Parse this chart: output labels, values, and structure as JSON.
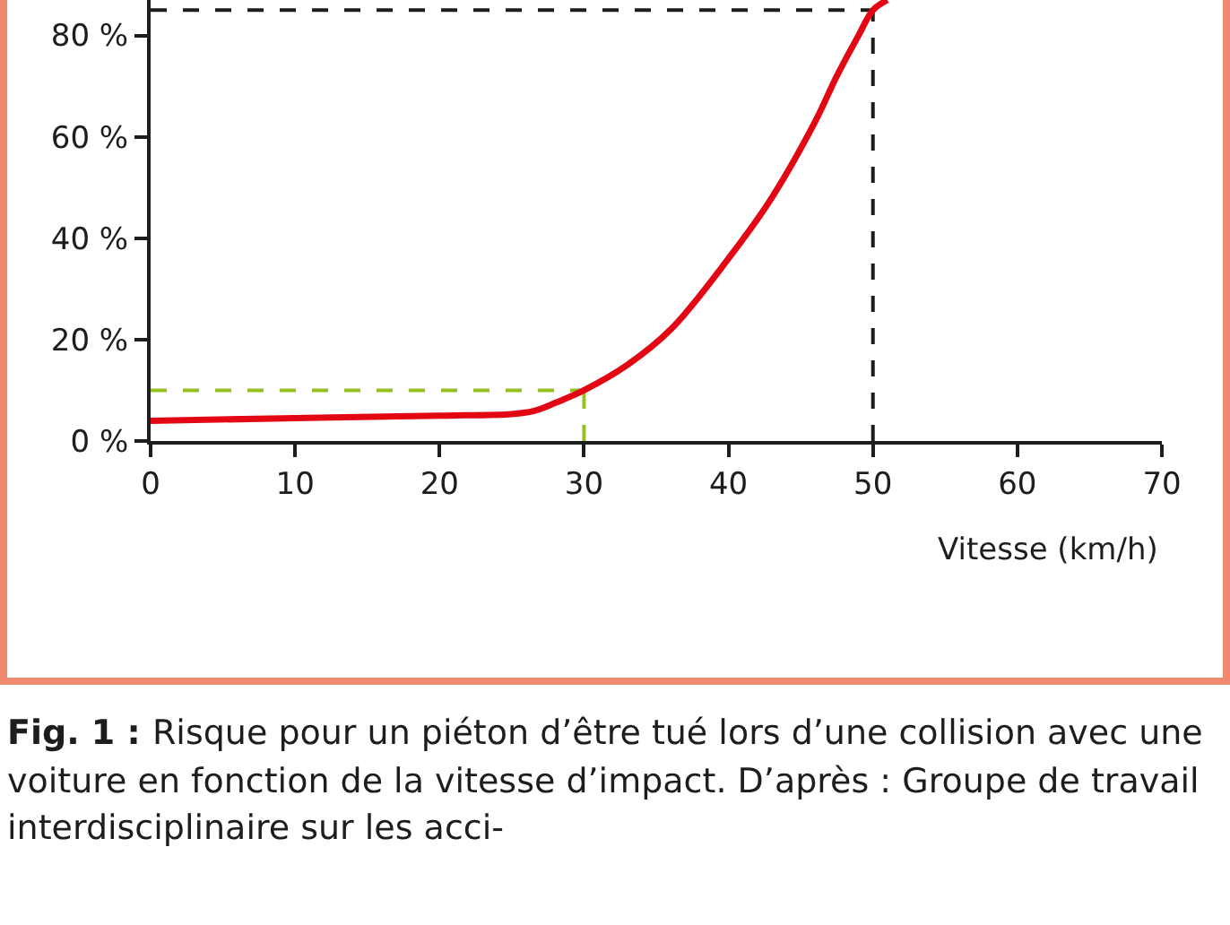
{
  "chart_data": {
    "type": "line",
    "xlabel": "Vitesse (km/h)",
    "x": [
      0,
      10,
      20,
      25,
      26.5,
      28,
      30,
      33,
      36,
      40,
      43,
      46,
      47.5,
      49,
      50,
      51
    ],
    "series": [
      {
        "color": "#e30613",
        "values": [
          4,
          4.5,
          5,
          5.3,
          5.9,
          7.5,
          10,
          15,
          22,
          36,
          48,
          63,
          72,
          80,
          85,
          87
        ]
      }
    ],
    "xlim": [
      0,
      70
    ],
    "xticks": [
      0,
      10,
      20,
      30,
      40,
      50,
      60,
      70
    ],
    "ylim": [
      0,
      87
    ],
    "yticks": [
      {
        "value": 0,
        "label": "0 %"
      },
      {
        "value": 20,
        "label": "20 %"
      },
      {
        "value": 40,
        "label": "40 %"
      },
      {
        "value": 60,
        "label": "60 %"
      },
      {
        "value": 80,
        "label": "80 %"
      }
    ],
    "ref_lines": [
      {
        "axis": "y",
        "value": 10,
        "color": "#95c11f",
        "line_style": "dashed"
      },
      {
        "axis": "x",
        "value": 30,
        "color": "#95c11f",
        "line_style": "dashed"
      },
      {
        "axis": "y",
        "value": 85,
        "color": "#1d1d1b",
        "line_style": "dashed"
      },
      {
        "axis": "x",
        "value": 50,
        "color": "#1d1d1b",
        "line_style": "dashed"
      }
    ],
    "annotations": [
      "Fig. 1 :",
      "Risque pour un piéton d’être tué lors d’une collision avec une voiture en fonction de la vitesse d’impact. D’après : Groupe de travail interdisciplinaire sur les acci-"
    ],
    "grid": false,
    "marker": "none",
    "line_style": "solid"
  }
}
